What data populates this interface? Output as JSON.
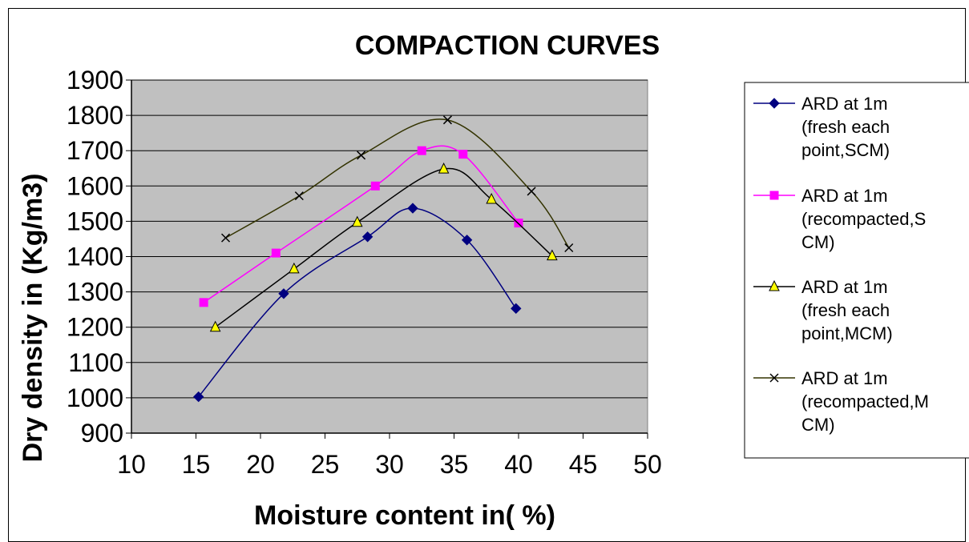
{
  "chart_data": {
    "type": "line",
    "title": "COMPACTION CURVES",
    "xlabel": "Moisture content in( %)",
    "ylabel": "Dry density in (Kg/m3)",
    "xlim": [
      10,
      50
    ],
    "ylim": [
      900,
      1900
    ],
    "x_ticks": [
      10,
      15,
      20,
      25,
      30,
      35,
      40,
      45,
      50
    ],
    "y_ticks": [
      900,
      1000,
      1100,
      1200,
      1300,
      1400,
      1500,
      1600,
      1700,
      1800,
      1900
    ],
    "grid": "horizontal",
    "plot_background": "#c0c0c0",
    "legend_position": "right",
    "series": [
      {
        "name": "ARD at 1m (fresh each point,SCM)",
        "legend_lines": [
          "ARD at 1m",
          "(fresh each",
          "point,SCM)"
        ],
        "color": "#000080",
        "marker": "diamond",
        "x": [
          15.2,
          21.8,
          28.3,
          31.8,
          36.0,
          39.8
        ],
        "y": [
          1003,
          1295,
          1456,
          1537,
          1447,
          1253
        ]
      },
      {
        "name": "ARD at 1m (recompacted,SCM)",
        "legend_lines": [
          "ARD at 1m",
          "(recompacted,S",
          "CM)"
        ],
        "color": "#ff00ff",
        "marker": "square",
        "x": [
          15.6,
          21.2,
          28.9,
          32.5,
          35.7,
          40.0
        ],
        "y": [
          1270,
          1410,
          1600,
          1700,
          1690,
          1495
        ]
      },
      {
        "name": "ARD at 1m (fresh each point,MCM)",
        "legend_lines": [
          "ARD at 1m",
          "(fresh each",
          "point,MCM)"
        ],
        "color": "#000000",
        "marker": "triangle",
        "marker_fill": "#ffff00",
        "x": [
          16.5,
          22.6,
          27.5,
          34.2,
          37.9,
          42.6
        ],
        "y": [
          1200,
          1365,
          1497,
          1648,
          1562,
          1402
        ]
      },
      {
        "name": "ARD at 1m (recompacted,MCM)",
        "legend_lines": [
          "ARD at 1m",
          "(recompacted,M",
          "CM)"
        ],
        "color": "#333300",
        "marker": "x",
        "marker_color": "#000000",
        "x": [
          17.3,
          23.0,
          27.8,
          34.5,
          41.0,
          43.9
        ],
        "y": [
          1453,
          1572,
          1687,
          1787,
          1585,
          1425
        ]
      }
    ]
  }
}
